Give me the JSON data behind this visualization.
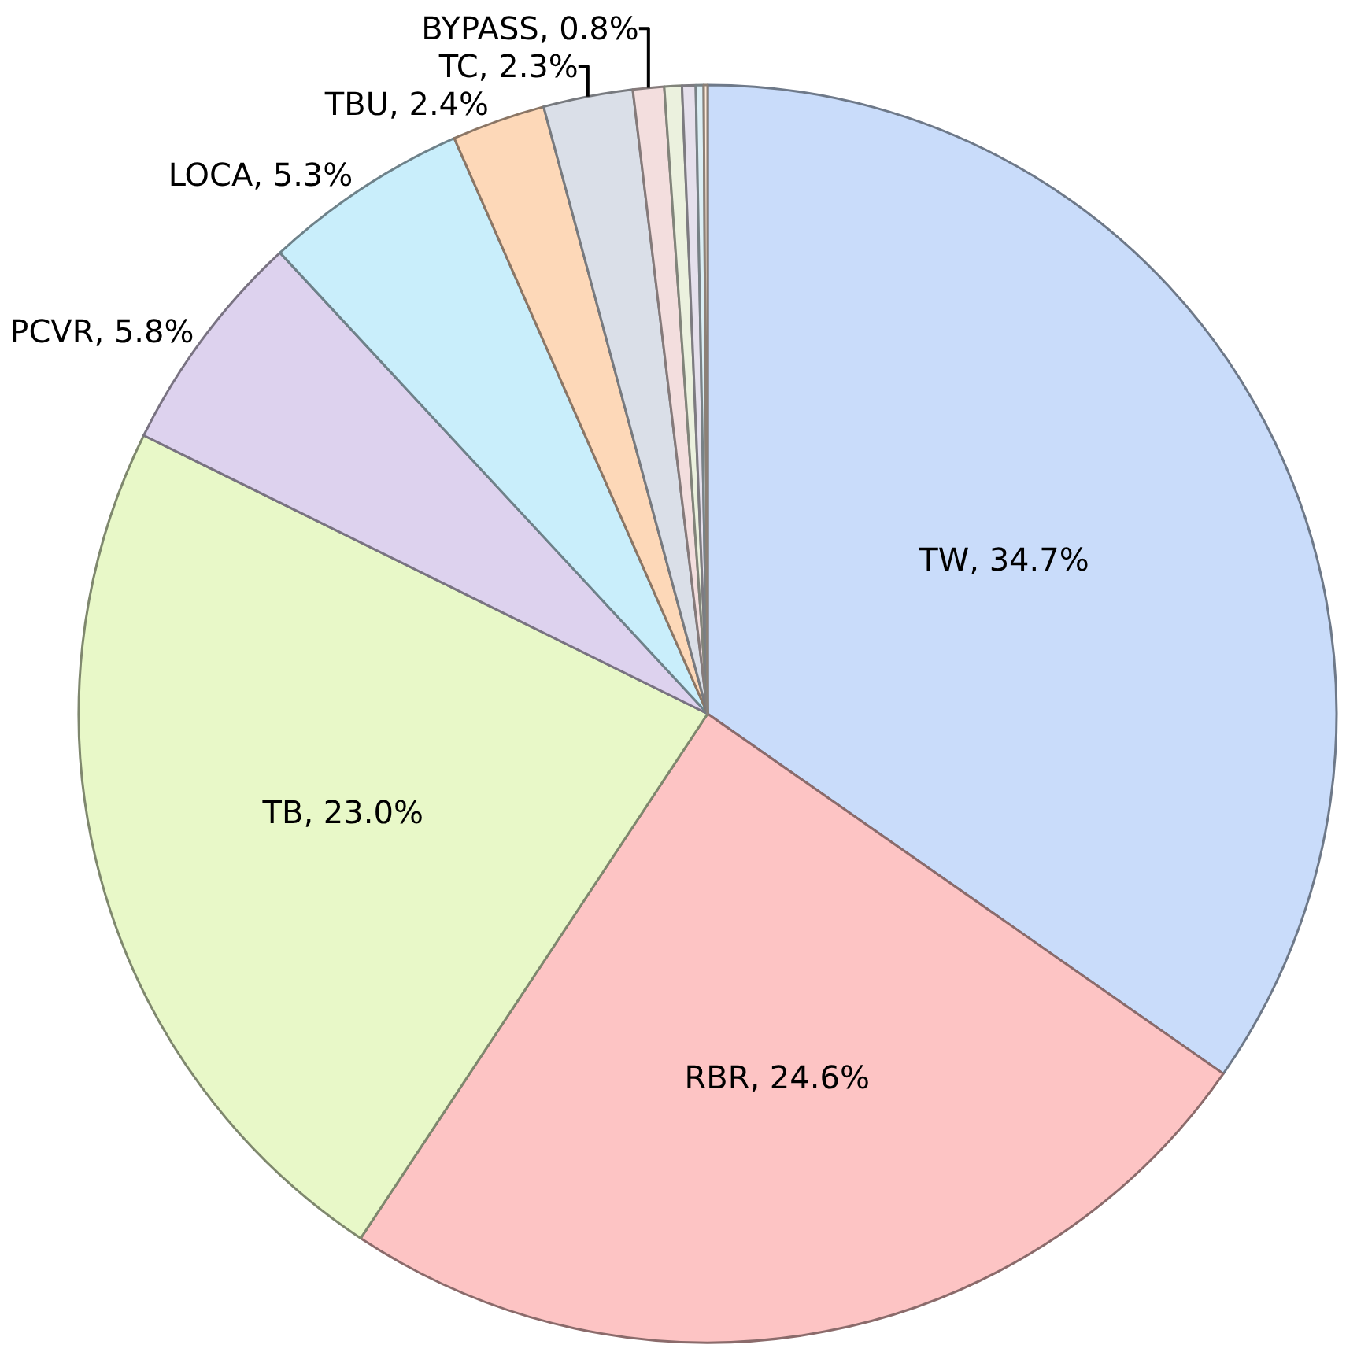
{
  "chart_data": {
    "type": "pie",
    "categories": [
      "TW",
      "RBR",
      "TB",
      "PCVR",
      "LOCA",
      "TBU",
      "TC",
      "BYPASS",
      null,
      null,
      null,
      null
    ],
    "values": [
      34.7,
      24.6,
      23.0,
      5.8,
      5.3,
      2.4,
      2.3,
      0.8,
      0.45,
      0.35,
      0.2,
      0.1
    ],
    "value_labels": [
      "34.7%",
      "24.6%",
      "23.0%",
      "5.8%",
      "5.3%",
      "2.4%",
      "2.3%",
      "0.8%",
      null,
      null,
      null,
      null
    ],
    "colors": [
      "#c9dcfa",
      "#fdc4c4",
      "#e8f8c8",
      "#ddd2ee",
      "#c9eefb",
      "#fdd8b8",
      "#dadfe8",
      "#f3dede",
      "#ebf1de",
      "#e5e0ec",
      "#dbeef4",
      "#fde9d9"
    ],
    "legend": false
  }
}
